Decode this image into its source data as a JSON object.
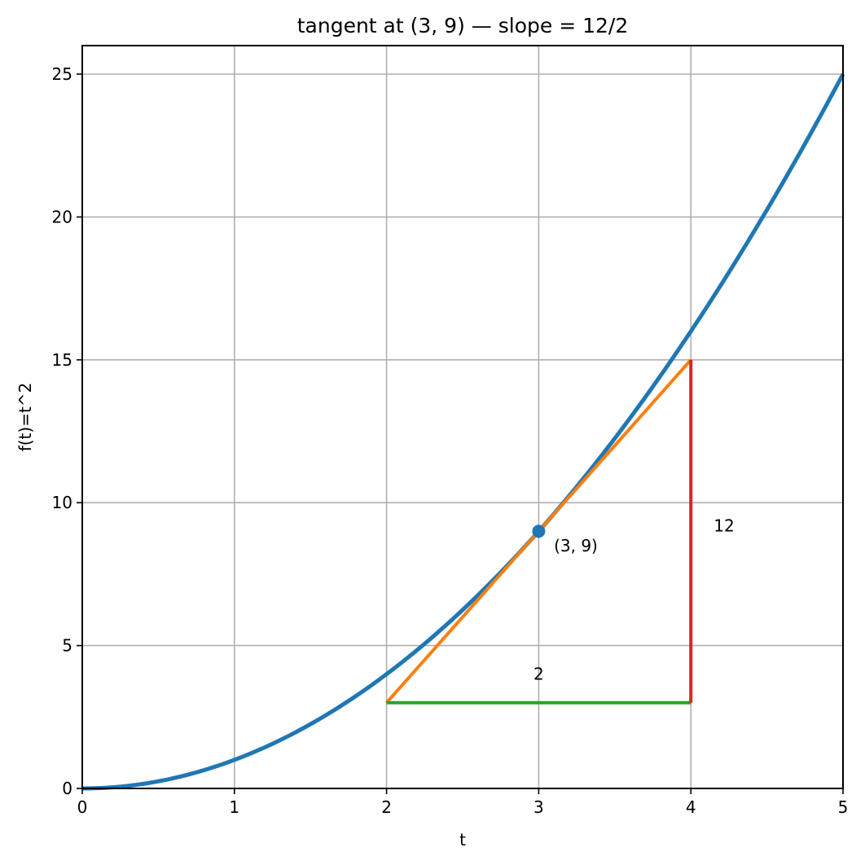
{
  "chart_data": {
    "type": "line",
    "title": "tangent at (3, 9)  —  slope = 12/2",
    "xlabel": "t",
    "ylabel": "f(t)=t^2",
    "xlim": [
      0,
      5
    ],
    "ylim": [
      0,
      26
    ],
    "grid": true,
    "x_ticks": [
      "0",
      "1",
      "2",
      "3",
      "4",
      "5"
    ],
    "y_ticks": [
      "0",
      "5",
      "10",
      "15",
      "20",
      "25"
    ],
    "series": [
      {
        "name": "f(t)=t^2",
        "type": "curve",
        "color": "#1f77b4",
        "x": [
          0,
          0.5,
          1,
          1.5,
          2,
          2.5,
          3,
          3.5,
          4,
          4.5,
          5
        ],
        "y": [
          0,
          0.25,
          1,
          2.25,
          4,
          6.25,
          9,
          12.25,
          16,
          20.25,
          25
        ]
      },
      {
        "name": "tangent",
        "type": "line",
        "color": "#ff7f0e",
        "x": [
          2,
          4
        ],
        "y": [
          3,
          15
        ]
      },
      {
        "name": "run",
        "type": "line",
        "color": "#2ca02c",
        "x": [
          2,
          4
        ],
        "y": [
          3,
          3
        ]
      },
      {
        "name": "rise",
        "type": "line",
        "color": "#d62728",
        "x": [
          4,
          4
        ],
        "y": [
          3,
          15
        ]
      },
      {
        "name": "point",
        "type": "scatter",
        "color": "#1f77b4",
        "x": [
          3
        ],
        "y": [
          9
        ]
      }
    ],
    "annotations": [
      {
        "text": "(3, 9)",
        "x": 3.1,
        "y": 8.3
      },
      {
        "text": "12",
        "x": 4.15,
        "y": 9
      },
      {
        "text": "2",
        "x": 3.0,
        "y": 3.8
      }
    ]
  }
}
